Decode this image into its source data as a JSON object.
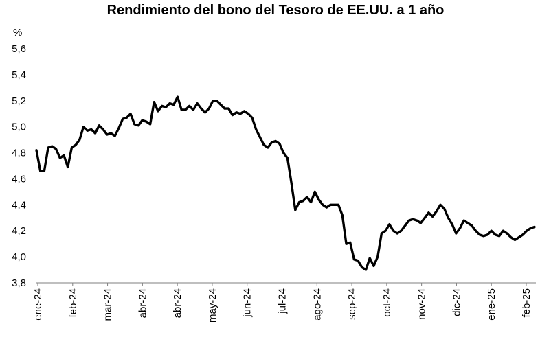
{
  "chart_data": {
    "type": "line",
    "title": "Rendimiento del bono del Tesoro de EE.UU. a 1 año",
    "ylabel": "%",
    "ylim": [
      3.8,
      5.6
    ],
    "yticks": [
      "3,8",
      "4,0",
      "4,2",
      "4,4",
      "4,6",
      "4,8",
      "5,0",
      "5,2",
      "5,4",
      "5,6"
    ],
    "x_ticks": [
      "ene-24",
      "feb-24",
      "mar-24",
      "abr-24",
      "abr-24",
      "may-24",
      "jun-24",
      "jul-24",
      "ago-24",
      "sep-24",
      "oct-24",
      "nov-24",
      "dic-24",
      "ene-25",
      "feb-25"
    ],
    "grid": false,
    "legend": "none",
    "line_color": "#000000",
    "series": [
      {
        "values": [
          4.82,
          4.66,
          4.66,
          4.84,
          4.85,
          4.83,
          4.76,
          4.78,
          4.69,
          4.84,
          4.86,
          4.9,
          5.0,
          4.97,
          4.98,
          4.95,
          5.01,
          4.98,
          4.94,
          4.95,
          4.93,
          4.99,
          5.06,
          5.07,
          5.1,
          5.02,
          5.01,
          5.05,
          5.04,
          5.02,
          5.19,
          5.12,
          5.16,
          5.15,
          5.18,
          5.17,
          5.23,
          5.13,
          5.13,
          5.16,
          5.13,
          5.18,
          5.14,
          5.11,
          5.14,
          5.2,
          5.2,
          5.17,
          5.14,
          5.14,
          5.09,
          5.11,
          5.1,
          5.12,
          5.1,
          5.07,
          4.98,
          4.92,
          4.86,
          4.84,
          4.88,
          4.89,
          4.87,
          4.8,
          4.76,
          4.57,
          4.36,
          4.42,
          4.43,
          4.46,
          4.42,
          4.5,
          4.44,
          4.4,
          4.38,
          4.4,
          4.4,
          4.4,
          4.32,
          4.1,
          4.11,
          3.98,
          3.97,
          3.92,
          3.9,
          3.99,
          3.93,
          4.0,
          4.18,
          4.2,
          4.25,
          4.2,
          4.18,
          4.2,
          4.24,
          4.28,
          4.29,
          4.28,
          4.26,
          4.3,
          4.34,
          4.31,
          4.35,
          4.4,
          4.37,
          4.3,
          4.25,
          4.18,
          4.22,
          4.28,
          4.26,
          4.24,
          4.2,
          4.17,
          4.16,
          4.17,
          4.2,
          4.17,
          4.16,
          4.2,
          4.18,
          4.15,
          4.13,
          4.15,
          4.17,
          4.2,
          4.22,
          4.23
        ]
      }
    ]
  }
}
